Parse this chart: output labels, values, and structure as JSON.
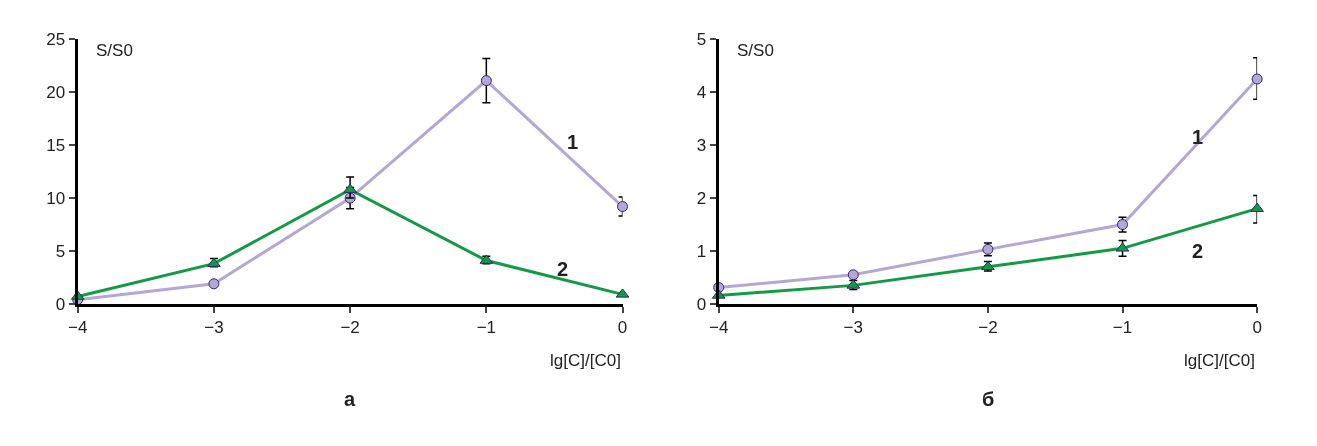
{
  "chart_data": [
    {
      "type": "line",
      "title": "а",
      "xlabel": "lg[C]/[C0]",
      "ylabel": "S/S0",
      "x": [
        -4,
        -3,
        -2,
        -1,
        0
      ],
      "xlim": [
        -4,
        0
      ],
      "xticks": [
        {
          "value": -4,
          "label": "−4"
        },
        {
          "value": -3,
          "label": "−3"
        },
        {
          "value": -2,
          "label": "−2"
        },
        {
          "value": -1,
          "label": "−1"
        },
        0
      ],
      "ylim": [
        0,
        25
      ],
      "yticks": [
        0,
        5,
        10,
        15,
        20,
        25
      ],
      "series": [
        {
          "name": "1",
          "color": "#b4a7d6",
          "marker": "circle",
          "values": [
            0.4,
            1.9,
            10,
            21.1,
            9.2
          ],
          "errors": [
            null,
            null,
            1,
            [
              19,
              23.2
            ],
            [
              8.3,
              10.1
            ]
          ]
        },
        {
          "name": "2",
          "color": "#149a45",
          "marker": "triangle",
          "values": [
            0.7,
            3.8,
            10.8,
            4.1,
            0.9
          ],
          "errors": [
            null,
            [
              3.5,
              4.3
            ],
            [
              10,
              12
            ],
            [
              3.8,
              4.5
            ],
            null
          ]
        }
      ]
    },
    {
      "type": "line",
      "title": "б",
      "xlabel": "lg[C]/[C0]",
      "ylabel": "S/S0",
      "x": [
        -4,
        -3,
        -2,
        -1,
        0
      ],
      "xlim": [
        -4,
        0
      ],
      "xticks": [
        {
          "value": -4,
          "label": "−4"
        },
        {
          "value": -3,
          "label": "−3"
        },
        {
          "value": -2,
          "label": "−2"
        },
        {
          "value": -1,
          "label": "−1"
        },
        0
      ],
      "ylim": [
        0,
        5
      ],
      "yticks": [
        0,
        1,
        2,
        3,
        4,
        5
      ],
      "series": [
        {
          "name": "1",
          "color": "#b4a7d6",
          "marker": "circle",
          "values": [
            0.31,
            0.55,
            1.03,
            1.5,
            4.25
          ],
          "errors": [
            null,
            null,
            [
              0.91,
              1.15
            ],
            [
              1.36,
              1.64
            ],
            [
              3.87,
              4.65
            ]
          ]
        },
        {
          "name": "2",
          "color": "#149a45",
          "marker": "triangle",
          "values": [
            0.16,
            0.35,
            0.7,
            1.05,
            1.8
          ],
          "errors": [
            null,
            [
              0.27,
              0.44
            ],
            [
              0.62,
              0.8
            ],
            [
              0.9,
              1.2
            ],
            [
              1.53,
              2.05
            ]
          ]
        }
      ]
    }
  ]
}
